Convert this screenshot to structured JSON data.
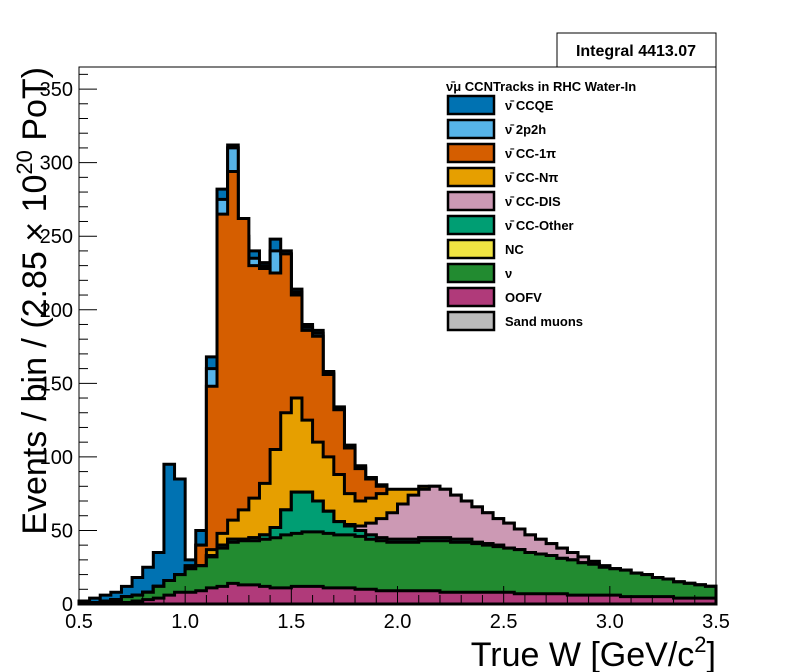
{
  "chart_data": {
    "type": "histogram-stacked",
    "xlabel": "True W [GeV/c",
    "xlabel_sup": "2",
    "xlabel_end": "]",
    "ylabel": "Events / bin / (2.85 × 10",
    "ylabel_sup": "20",
    "ylabel_end": " PoT)",
    "xlim": [
      0.5,
      3.5
    ],
    "ylim": [
      0,
      365
    ],
    "x_ticks": [
      0.5,
      1.0,
      1.5,
      2.0,
      2.5,
      3.0,
      3.5
    ],
    "x_tick_labels": [
      "0.5",
      "1.0",
      "1.5",
      "2.0",
      "2.5",
      "3.0",
      "3.5"
    ],
    "y_ticks": [
      0,
      50,
      100,
      150,
      200,
      250,
      300,
      350
    ],
    "y_tick_labels": [
      "0",
      "50",
      "100",
      "150",
      "200",
      "250",
      "300",
      "350"
    ],
    "bin_width": 0.05,
    "integral_label": "Integral 4413.07",
    "legend_title": "ν̄μ CCNTracks in RHC Water-In",
    "legend_position": "top-right",
    "legend": [
      {
        "label": "ν̄ CCQE",
        "color": "#0072b2"
      },
      {
        "label": "ν̄ 2p2h",
        "color": "#56b4e9"
      },
      {
        "label": "ν̄ CC-1π",
        "color": "#d55e00"
      },
      {
        "label": "ν̄ CC-Nπ",
        "color": "#e69f00"
      },
      {
        "label": "ν̄ CC-DIS",
        "color": "#cc99b4"
      },
      {
        "label": "ν̄ CC-Other",
        "color": "#009e73"
      },
      {
        "label": "NC",
        "color": "#f0e442"
      },
      {
        "label": "ν",
        "color": "#228b30"
      },
      {
        "label": "OOFV",
        "color": "#b03a7a"
      },
      {
        "label": "Sand muons",
        "color": "#bbbbbb"
      }
    ],
    "bin_centers": [
      0.525,
      0.575,
      0.625,
      0.675,
      0.725,
      0.775,
      0.825,
      0.875,
      0.925,
      0.975,
      1.025,
      1.075,
      1.125,
      1.175,
      1.225,
      1.275,
      1.325,
      1.375,
      1.425,
      1.475,
      1.525,
      1.575,
      1.625,
      1.675,
      1.725,
      1.775,
      1.825,
      1.875,
      1.925,
      1.975,
      2.025,
      2.075,
      2.125,
      2.175,
      2.225,
      2.275,
      2.325,
      2.375,
      2.425,
      2.475,
      2.525,
      2.575,
      2.625,
      2.675,
      2.725,
      2.775,
      2.825,
      2.875,
      2.925,
      2.975,
      3.025,
      3.075,
      3.125,
      3.175,
      3.225,
      3.275,
      3.325,
      3.375,
      3.425,
      3.475
    ],
    "cumulative_tops": {
      "OOFV": [
        0,
        0,
        0,
        1,
        1,
        2,
        3,
        4,
        6,
        8,
        8,
        9,
        11,
        12,
        14,
        13,
        13,
        12,
        11,
        11,
        12,
        12,
        12,
        11,
        11,
        11,
        10,
        10,
        9,
        9,
        9,
        9,
        9,
        9,
        8,
        8,
        8,
        8,
        8,
        8,
        8,
        7,
        7,
        7,
        7,
        7,
        6,
        6,
        6,
        6,
        6,
        5,
        5,
        5,
        5,
        5,
        4,
        4,
        4,
        4
      ],
      "nu": [
        1,
        1,
        2,
        3,
        5,
        6,
        8,
        12,
        16,
        20,
        24,
        26,
        32,
        38,
        42,
        43,
        43,
        44,
        45,
        47,
        48,
        49,
        49,
        48,
        47,
        47,
        46,
        44,
        43,
        42,
        42,
        42,
        43,
        43,
        43,
        42,
        42,
        41,
        40,
        39,
        38,
        37,
        35,
        34,
        33,
        31,
        30,
        28,
        27,
        25,
        24,
        23,
        21,
        20,
        18,
        17,
        15,
        14,
        13,
        12
      ],
      "CC-Other": [
        1,
        1,
        2,
        3,
        5,
        6,
        8,
        12,
        16,
        20,
        24,
        26,
        33,
        40,
        44,
        44,
        45,
        47,
        52,
        64,
        76,
        76,
        70,
        63,
        56,
        53,
        50,
        47,
        45,
        44,
        44,
        44,
        45,
        45,
        45,
        44,
        44,
        42,
        41,
        40,
        38,
        37,
        35,
        34,
        33,
        31,
        30,
        28,
        27,
        25,
        24,
        23,
        21,
        20,
        18,
        17,
        15,
        14,
        13,
        12
      ],
      "NC": [
        1,
        1,
        2,
        3,
        5,
        6,
        8,
        12,
        16,
        20,
        24,
        26,
        33,
        40,
        44,
        44,
        45,
        47,
        52,
        64,
        76,
        76,
        70,
        63,
        56,
        53,
        50,
        47,
        45,
        44,
        44,
        44,
        45,
        45,
        45,
        44,
        44,
        42,
        41,
        40,
        38,
        37,
        35,
        34,
        33,
        31,
        30,
        28,
        27,
        25,
        24,
        23,
        21,
        20,
        18,
        17,
        15,
        14,
        13,
        12
      ],
      "CC-DIS": [
        1,
        1,
        2,
        3,
        5,
        6,
        8,
        12,
        16,
        20,
        24,
        26,
        33,
        40,
        44,
        44,
        45,
        47,
        52,
        64,
        76,
        76,
        70,
        63,
        56,
        54,
        53,
        55,
        58,
        62,
        68,
        74,
        78,
        80,
        78,
        74,
        70,
        66,
        62,
        58,
        55,
        51,
        47,
        44,
        41,
        38,
        35,
        32,
        29,
        26,
        24,
        23,
        21,
        20,
        18,
        17,
        15,
        14,
        13,
        12
      ],
      "CC-Npi": [
        1,
        1,
        2,
        3,
        5,
        6,
        8,
        12,
        16,
        20,
        24,
        26,
        37,
        48,
        57,
        64,
        72,
        82,
        105,
        130,
        140,
        125,
        110,
        100,
        88,
        75,
        70,
        72,
        75,
        78,
        78,
        78,
        80,
        80,
        78,
        74,
        70,
        66,
        62,
        58,
        55,
        51,
        47,
        44,
        41,
        38,
        35,
        32,
        29,
        26,
        24,
        23,
        21,
        20,
        18,
        17,
        15,
        14,
        13,
        12
      ],
      "CC-1pi": [
        1,
        1,
        2,
        3,
        5,
        6,
        8,
        12,
        16,
        20,
        26,
        40,
        148,
        265,
        294,
        262,
        230,
        228,
        225,
        238,
        210,
        186,
        182,
        156,
        132,
        106,
        92,
        85,
        80,
        76,
        74,
        72,
        72,
        70,
        68,
        64,
        60,
        56,
        52,
        48,
        44,
        40,
        37,
        34,
        31,
        28,
        26,
        24,
        22,
        20,
        18,
        17,
        15,
        14,
        13,
        12,
        11,
        10,
        9,
        8
      ],
      "2p2h": [
        1,
        1,
        2,
        3,
        5,
        6,
        8,
        12,
        16,
        20,
        26,
        40,
        160,
        275,
        310,
        248,
        235,
        230,
        240,
        238,
        212,
        188,
        184,
        157,
        133,
        107,
        93,
        86,
        81,
        77,
        75,
        73,
        73,
        71,
        68,
        64,
        60,
        56,
        52,
        48,
        44,
        40,
        37,
        34,
        31,
        28,
        26,
        24,
        22,
        20,
        18,
        17,
        15,
        14,
        13,
        12,
        11,
        10,
        9,
        8
      ],
      "CCQE": [
        2,
        4,
        6,
        8,
        12,
        18,
        25,
        35,
        95,
        85,
        30,
        50,
        168,
        282,
        312,
        250,
        240,
        232,
        248,
        240,
        214,
        190,
        186,
        158,
        134,
        108,
        94,
        86,
        81,
        77,
        75,
        73,
        73,
        71,
        68,
        64,
        60,
        56,
        52,
        48,
        44,
        40,
        37,
        34,
        31,
        28,
        26,
        24,
        22,
        20,
        18,
        17,
        15,
        14,
        13,
        12,
        11,
        10,
        9,
        8
      ]
    }
  }
}
